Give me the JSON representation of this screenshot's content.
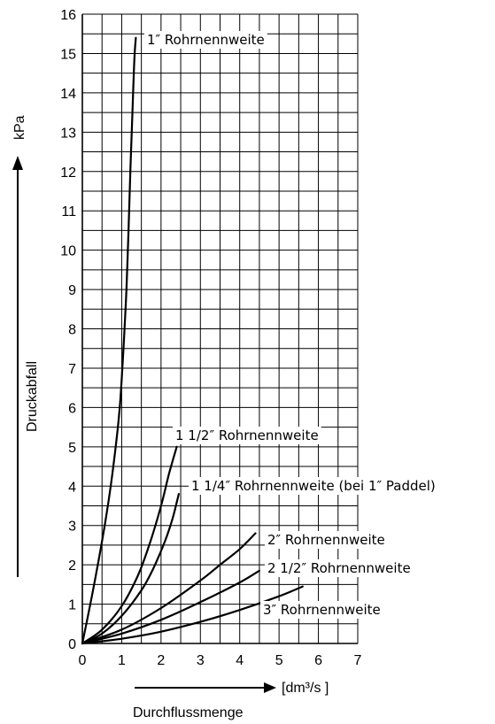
{
  "chart_data": {
    "type": "line",
    "title": "",
    "xlabel": "Durchflussmenge",
    "xunit": "[dm³/s ]",
    "ylabel": "Druckabfall",
    "yunit": "kPa",
    "xlim": [
      0,
      7
    ],
    "ylim": [
      0,
      16
    ],
    "x_major_ticks": [
      0,
      1,
      2,
      3,
      4,
      5,
      6,
      7
    ],
    "y_major_ticks": [
      0,
      1,
      2,
      3,
      4,
      5,
      6,
      7,
      8,
      9,
      10,
      11,
      12,
      13,
      14,
      15,
      16
    ],
    "x_minor_step": 0.5,
    "y_minor_step": 0.5,
    "grid": true,
    "series": [
      {
        "name": "1″ Rohrnennweite",
        "x": [
          0,
          0.3,
          0.6,
          0.8,
          0.95,
          1.05,
          1.12,
          1.17,
          1.22,
          1.27,
          1.3,
          1.33,
          1.36
        ],
        "y": [
          0,
          1.5,
          3.2,
          4.6,
          6.0,
          7.6,
          9.0,
          10.4,
          12.0,
          13.4,
          14.3,
          15.0,
          15.4
        ]
      },
      {
        "name": "1 1/2″ Rohrnennweite",
        "x": [
          0,
          0.5,
          1.0,
          1.4,
          1.7,
          2.0,
          2.2,
          2.4
        ],
        "y": [
          0,
          0.35,
          0.95,
          1.7,
          2.5,
          3.5,
          4.3,
          5.0
        ]
      },
      {
        "name": "1 1/4″ Rohrnennweite (bei 1″ Paddel)",
        "x": [
          0,
          0.5,
          1.0,
          1.5,
          1.8,
          2.1,
          2.3,
          2.45
        ],
        "y": [
          0,
          0.25,
          0.7,
          1.35,
          1.9,
          2.6,
          3.2,
          3.8
        ]
      },
      {
        "name": "2″ Rohrnennweite",
        "x": [
          0,
          1.0,
          2.0,
          3.0,
          3.5,
          4.0,
          4.4
        ],
        "y": [
          0,
          0.35,
          0.9,
          1.6,
          2.0,
          2.4,
          2.8
        ]
      },
      {
        "name": "2 1/2″ Rohrnennweite",
        "x": [
          0,
          1.0,
          2.0,
          3.0,
          4.0,
          4.5
        ],
        "y": [
          0,
          0.25,
          0.6,
          1.05,
          1.55,
          1.85
        ]
      },
      {
        "name": "3″ Rohrnennweite",
        "x": [
          0,
          1.0,
          2.0,
          3.0,
          4.0,
          5.0,
          5.6
        ],
        "y": [
          0,
          0.12,
          0.3,
          0.55,
          0.85,
          1.2,
          1.45
        ]
      }
    ],
    "curve_label_texts": [
      "1″ Rohrnennweite",
      "1 1/2″ Rohrnennweite",
      "1 1/4″ Rohrnennweite (bei 1″ Paddel)",
      "2″ Rohrnennweite",
      "2 1/2″ Rohrnennweite",
      "3″ Rohrnennweite"
    ]
  }
}
